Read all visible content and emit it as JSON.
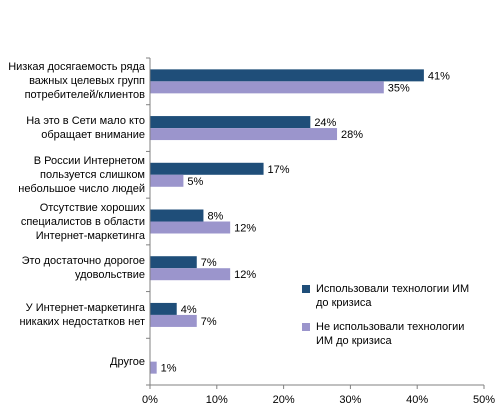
{
  "chart_data": {
    "type": "bar",
    "orientation": "horizontal",
    "categories": [
      "Низкая досягаемость ряда важных целевых групп потребителей/клиентов",
      "На это в Сети мало кто обращает внимание",
      "В России Интернетом пользуется слишком небольшое число людей",
      "Отсутствие хороших специалистов в области Интернет-маркетинга",
      "Это достаточно дорогое удовольствие",
      "У Интернет-маркетинга никаких недостатков нет",
      "Другое"
    ],
    "category_lines": [
      [
        "Низкая досягаемость ряда",
        "важных целевых групп",
        "потребителей/клиентов"
      ],
      [
        "На это в Сети мало кто",
        "обращает внимание"
      ],
      [
        "В России Интернетом",
        "пользуется слишком",
        "небольшое число людей"
      ],
      [
        "Отсутствие хороших",
        "специалистов в области",
        "Интернет-маркетинга"
      ],
      [
        "Это достаточно дорогое",
        "удовольствие"
      ],
      [
        "У Интернет-маркетинга",
        "никаких недостатков нет"
      ],
      [
        "Другое"
      ]
    ],
    "series": [
      {
        "name": "Использовали технологии ИМ до кризиса",
        "color": "#1f4e79",
        "values": [
          41,
          24,
          17,
          8,
          7,
          4,
          null
        ],
        "labels": [
          "41%",
          "24%",
          "17%",
          "8%",
          "7%",
          "4%",
          ""
        ]
      },
      {
        "name": "Не использовали технологии ИМ до кризиса",
        "color": "#9b95cc",
        "values": [
          35,
          28,
          5,
          12,
          12,
          7,
          1
        ],
        "labels": [
          "35%",
          "28%",
          "5%",
          "12%",
          "12%",
          "7%",
          "1%"
        ]
      }
    ],
    "legend_lines": [
      [
        "Использовали технологии ИМ",
        "до кризиса"
      ],
      [
        "Не использовали технологии",
        "ИМ до кризиса"
      ]
    ],
    "xlim": [
      0,
      50
    ],
    "xticks": [
      "0%",
      "10%",
      "20%",
      "30%",
      "40%",
      "50%"
    ],
    "xtick_values": [
      0,
      10,
      20,
      30,
      40,
      50
    ],
    "grid": false,
    "legend_position": "right"
  }
}
